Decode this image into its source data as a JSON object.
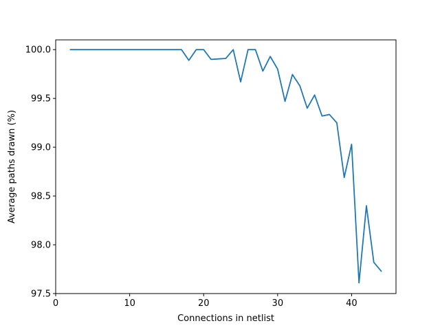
{
  "chart_data": {
    "type": "line",
    "title": "",
    "xlabel": "Connections in netlist",
    "ylabel": "Average paths drawn (%)",
    "xlim": [
      0,
      46
    ],
    "ylim": [
      97.5,
      100.1
    ],
    "xticks": [
      0,
      10,
      20,
      30,
      40
    ],
    "xtick_labels": [
      "0",
      "10",
      "20",
      "30",
      "40"
    ],
    "yticks": [
      97.5,
      98.0,
      98.5,
      99.0,
      99.5,
      100.0
    ],
    "ytick_labels": [
      "97.5",
      "98.0",
      "98.5",
      "99.0",
      "99.5",
      "100.0"
    ],
    "grid": false,
    "series": [
      {
        "color": "#1f77b4",
        "x": [
          2,
          3,
          4,
          5,
          6,
          7,
          8,
          9,
          10,
          11,
          12,
          13,
          14,
          15,
          16,
          17,
          18,
          19,
          20,
          21,
          22,
          23,
          24,
          25,
          26,
          27,
          28,
          29,
          30,
          31,
          32,
          33,
          34,
          35,
          36,
          37,
          38,
          39,
          40,
          41,
          42,
          43,
          44
        ],
        "y": [
          100.0,
          100.0,
          100.0,
          100.0,
          100.0,
          100.0,
          100.0,
          100.0,
          100.0,
          100.0,
          100.0,
          100.0,
          100.0,
          100.0,
          100.0,
          100.0,
          99.89,
          100.0,
          100.0,
          99.9,
          99.905,
          99.91,
          100.0,
          99.67,
          100.0,
          100.0,
          99.78,
          99.93,
          99.8,
          99.47,
          99.745,
          99.63,
          99.4,
          99.535,
          99.32,
          99.335,
          99.25,
          98.69,
          99.03,
          97.61,
          98.4,
          97.82,
          97.73
        ]
      }
    ]
  }
}
